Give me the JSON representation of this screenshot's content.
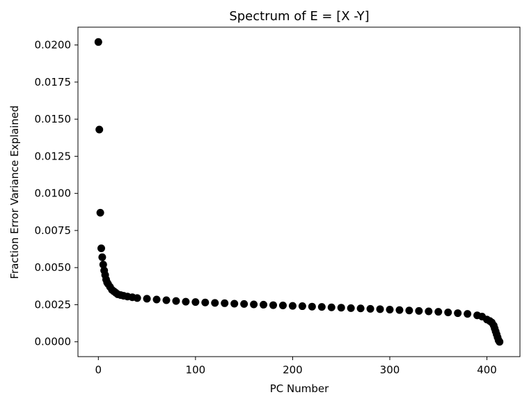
{
  "chart_data": {
    "type": "scatter",
    "title": "Spectrum of E = [X -Y]",
    "xlabel": "PC Number",
    "ylabel": "Fraction Error Variance Explained",
    "xlim": [
      -21,
      434
    ],
    "ylim": [
      -0.001,
      0.0212
    ],
    "xticks": [
      0,
      100,
      200,
      300,
      400
    ],
    "xtick_labels": [
      "0",
      "100",
      "200",
      "300",
      "400"
    ],
    "yticks": [
      0,
      0.0025,
      0.005,
      0.0075,
      0.01,
      0.0125,
      0.015,
      0.0175,
      0.02
    ],
    "ytick_labels": [
      "0.0000",
      "0.0025",
      "0.0050",
      "0.0075",
      "0.0100",
      "0.0125",
      "0.0150",
      "0.0175",
      "0.0200"
    ],
    "grid": false,
    "legend": "none",
    "marker_color": "#000000",
    "series": [
      {
        "x": [
          0,
          1,
          2,
          3,
          4,
          5,
          6,
          7,
          8,
          9,
          10,
          12,
          14,
          16,
          18,
          20,
          23,
          26,
          30,
          35,
          40,
          50,
          60,
          70,
          80,
          90,
          100,
          110,
          120,
          130,
          140,
          150,
          160,
          170,
          180,
          190,
          200,
          210,
          220,
          230,
          240,
          250,
          260,
          270,
          280,
          290,
          300,
          310,
          320,
          330,
          340,
          350,
          360,
          370,
          380,
          390,
          395,
          400,
          403,
          405,
          407,
          408,
          409,
          410,
          411,
          412,
          413
        ],
        "y": [
          0.0202,
          0.0143,
          0.0087,
          0.0063,
          0.0057,
          0.0052,
          0.0048,
          0.0045,
          0.0042,
          0.004,
          0.0039,
          0.0037,
          0.0035,
          0.0034,
          0.0033,
          0.0032,
          0.00315,
          0.0031,
          0.00305,
          0.003,
          0.00295,
          0.0029,
          0.00285,
          0.0028,
          0.00275,
          0.0027,
          0.00268,
          0.00265,
          0.00262,
          0.0026,
          0.00257,
          0.00255,
          0.00252,
          0.0025,
          0.00247,
          0.00245,
          0.00242,
          0.0024,
          0.00237,
          0.00235,
          0.00232,
          0.0023,
          0.00227,
          0.00225,
          0.00222,
          0.0022,
          0.00217,
          0.00214,
          0.00211,
          0.00208,
          0.00205,
          0.00202,
          0.00198,
          0.00193,
          0.00188,
          0.00178,
          0.0017,
          0.0015,
          0.0014,
          0.0013,
          0.0011,
          0.0009,
          0.0007,
          0.0005,
          0.0003,
          0.0001,
          0.0
        ]
      }
    ]
  }
}
